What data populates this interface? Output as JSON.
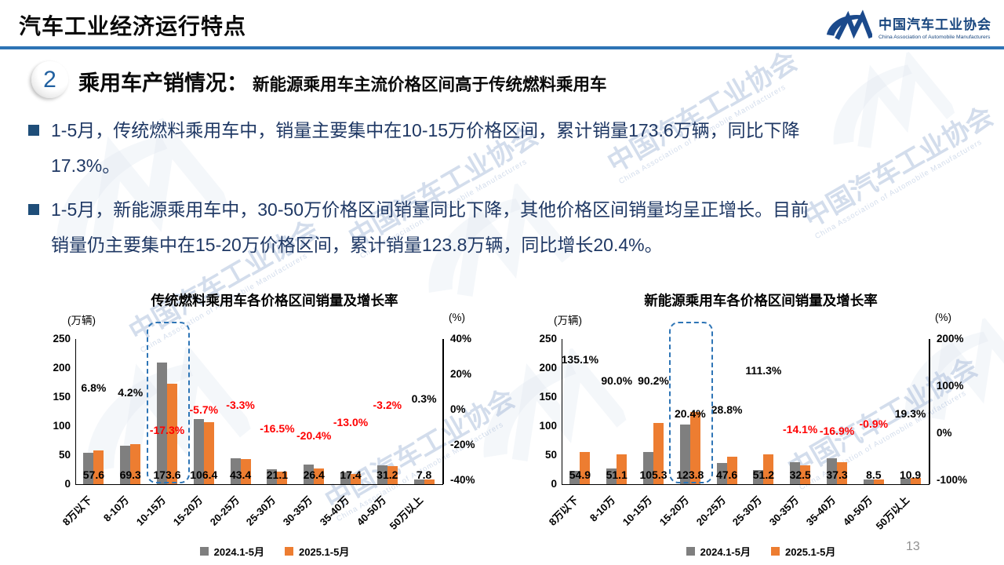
{
  "slide": {
    "title": "汽车工业经济运行特点",
    "page_number": "13",
    "section": {
      "number": "2",
      "heading": "乘用车产销情况：",
      "subheading": "新能源乘用车主流价格区间高于传统燃料乘用车"
    },
    "bullets": [
      {
        "lines": [
          "1-5月，传统燃料乘用车中，销量主要集中在10-15万价格区间，累计销量173.6万辆，同比下降",
          "17.3%。"
        ]
      },
      {
        "lines": [
          "1-5月，新能源乘用车中，30-50万价格区间销量同比下降，其他价格区间销量均呈正增长。目前",
          "销量仍主要集中在15-20万价格区间，累计销量123.8万辆，同比增长20.4%。"
        ]
      }
    ],
    "logo": {
      "org_cn": "中国汽车工业协会",
      "org_en": "China Association of Automobile Manufacturers"
    },
    "watermark": {
      "text_cn": "中国汽车工业协会",
      "text_en": "China Association of Automobile Manufacturers"
    }
  },
  "colors": {
    "accent_blue": "#2E74B5",
    "text_navy": "#1F3864",
    "bar_2024": "#7F7F7F",
    "bar_2025": "#ED7D31",
    "negative_red": "#FF0000",
    "positive_black": "#000000",
    "logo_blue": "#1B4A8C",
    "highlight_box_blue": "#2E75B6"
  },
  "chart_data": [
    {
      "type": "bar",
      "title": "传统燃料乘用车各价格区间销量及增长率",
      "unit_left": "(万辆)",
      "unit_right": "(%)",
      "categories": [
        "8万以下",
        "8-10万",
        "10-15万",
        "15-20万",
        "20-25万",
        "25-30万",
        "30-35万",
        "35-40万",
        "40-50万",
        "50万以上"
      ],
      "series": [
        {
          "name": "2024.1-5月",
          "color": "#7F7F7F",
          "values": [
            53.9,
            66.5,
            209.9,
            112.8,
            44.9,
            25.3,
            33.2,
            20.0,
            32.2,
            7.8
          ]
        },
        {
          "name": "2025.1-5月",
          "color": "#ED7D31",
          "values": [
            57.6,
            69.3,
            173.6,
            106.4,
            43.4,
            21.1,
            26.4,
            17.4,
            31.2,
            7.8
          ]
        }
      ],
      "value_labels": [
        "57.6",
        "69.3",
        "173.6",
        "106.4",
        "43.4",
        "21.1",
        "26.4",
        "17.4",
        "31.2",
        "7.8"
      ],
      "growth_labels": [
        "6.8%",
        "4.2%",
        "-17.3%",
        "-5.7%",
        "-3.3%",
        "-16.5%",
        "-20.4%",
        "-13.0%",
        "-3.2%",
        "0.3%"
      ],
      "growth_values": [
        6.8,
        4.2,
        -17.3,
        -5.7,
        -3.3,
        -16.5,
        -20.4,
        -13.0,
        -3.2,
        0.3
      ],
      "ylim_left": [
        0,
        250
      ],
      "yticks_left": [
        "250",
        "200",
        "150",
        "100",
        "50",
        "0"
      ],
      "ylim_right": [
        -40,
        40
      ],
      "yticks_right": [
        "40%",
        "20%",
        "0%",
        "-20%",
        "-40%"
      ],
      "highlight_category": "10-15万",
      "highlight_index": 2,
      "legend": [
        "2024.1-5月",
        "2025.1-5月"
      ],
      "grid": false,
      "legend_position": "bottom"
    },
    {
      "type": "bar",
      "title": "新能源乘用车各价格区间销量及增长率",
      "unit_left": "(万辆)",
      "unit_right": "(%)",
      "categories": [
        "8万以下",
        "8-10万",
        "10-15万",
        "15-20万",
        "20-25万",
        "25-30万",
        "30-35万",
        "35-40万",
        "40-50万",
        "50万以上"
      ],
      "series": [
        {
          "name": "2024.1-5月",
          "color": "#7F7F7F",
          "values": [
            23.4,
            26.9,
            55.4,
            102.8,
            37.0,
            24.2,
            37.8,
            44.9,
            8.6,
            9.1
          ]
        },
        {
          "name": "2025.1-5月",
          "color": "#ED7D31",
          "values": [
            54.9,
            51.1,
            105.3,
            123.8,
            47.6,
            51.2,
            32.5,
            37.3,
            8.5,
            10.9
          ]
        }
      ],
      "value_labels": [
        "54.9",
        "51.1",
        "105.3",
        "123.8",
        "47.6",
        "51.2",
        "32.5",
        "37.3",
        "8.5",
        "10.9"
      ],
      "growth_labels": [
        "135.1%",
        "90.0%",
        "90.2%",
        "20.4%",
        "28.8%",
        "111.3%",
        "-14.1%",
        "-16.9%",
        "-0.9%",
        "19.3%"
      ],
      "growth_values": [
        135.1,
        90.0,
        90.2,
        20.4,
        28.8,
        111.3,
        -14.1,
        -16.9,
        -0.9,
        19.3
      ],
      "ylim_left": [
        0,
        250
      ],
      "yticks_left": [
        "250",
        "200",
        "150",
        "100",
        "50",
        "0"
      ],
      "ylim_right": [
        -100,
        200
      ],
      "yticks_right": [
        "200%",
        "100%",
        "0%",
        "-100%"
      ],
      "highlight_category": "15-20万",
      "highlight_index": 3,
      "legend": [
        "2024.1-5月",
        "2025.1-5月"
      ],
      "grid": false,
      "legend_position": "bottom"
    }
  ]
}
